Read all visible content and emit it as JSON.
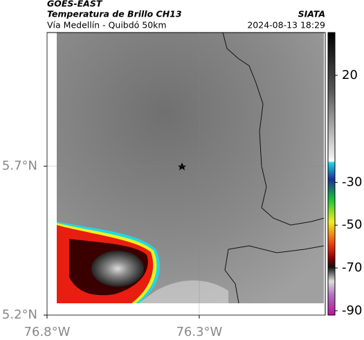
{
  "header": {
    "title": "GOES-EAST",
    "subtitle": "Temperatura de Brillo CH13",
    "source": "SIATA",
    "location": "Vía Medellín - Quibdó 50km",
    "datetime": "2024-08-13 18:29"
  },
  "map": {
    "xlim": [
      -76.8,
      -75.886
    ],
    "ylim": [
      5.2,
      6.149
    ],
    "xticks": [
      {
        "value": -76.8,
        "label": "76.8°W"
      },
      {
        "value": -76.3,
        "label": "76.3°W"
      }
    ],
    "yticks": [
      {
        "value": 5.2,
        "label": "5.2°N"
      },
      {
        "value": 5.7,
        "label": "5.7°N"
      }
    ]
  },
  "colorbar": {
    "clim": [
      -92,
      40
    ],
    "ticks": [
      20,
      -30,
      -50,
      -70,
      -90
    ]
  }
}
